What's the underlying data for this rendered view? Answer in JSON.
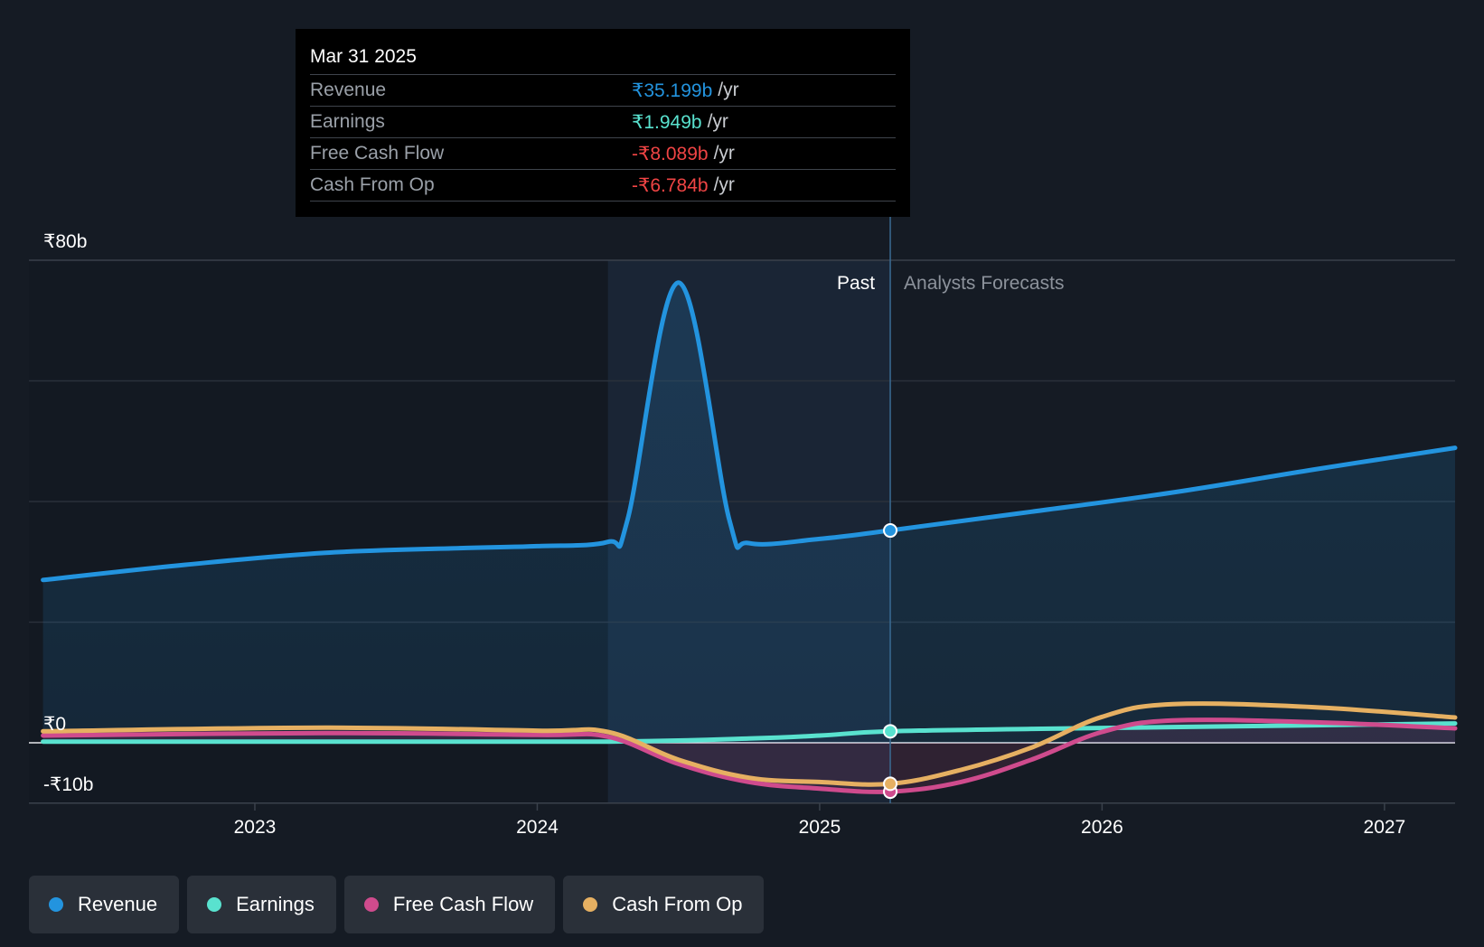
{
  "colors": {
    "background": "#151b24",
    "revenue": "#2394df",
    "earnings": "#59e2cf",
    "fcf": "#cf4b8d",
    "cfo": "#e6b062",
    "negative": "#ef4444"
  },
  "tooltip": {
    "date": "Mar 31 2025",
    "rows": [
      {
        "label": "Revenue",
        "value": "₹35.199b",
        "unit": "/yr"
      },
      {
        "label": "Earnings",
        "value": "₹1.949b",
        "unit": "/yr"
      },
      {
        "label": "Free Cash Flow",
        "value": "-₹8.089b",
        "unit": "/yr"
      },
      {
        "label": "Cash From Op",
        "value": "-₹6.784b",
        "unit": "/yr"
      }
    ]
  },
  "legend": [
    {
      "label": "Revenue",
      "color": "#2394df"
    },
    {
      "label": "Earnings",
      "color": "#59e2cf"
    },
    {
      "label": "Free Cash Flow",
      "color": "#cf4b8d"
    },
    {
      "label": "Cash From Op",
      "color": "#e6b062"
    }
  ],
  "chart_data": {
    "type": "line",
    "title": "",
    "xlabel": "",
    "ylabel": "",
    "x_range": [
      2022.2,
      2027.25
    ],
    "ylim": [
      -10,
      80
    ],
    "y_tick_labels": [
      {
        "value": 80,
        "label": "₹80b"
      },
      {
        "value": 0,
        "label": "₹0"
      },
      {
        "value": -10,
        "label": "-₹10b"
      }
    ],
    "gridlines": [
      80,
      60,
      40,
      20
    ],
    "x_ticks": [
      {
        "value": 2023,
        "label": "2023"
      },
      {
        "value": 2024,
        "label": "2024"
      },
      {
        "value": 2025,
        "label": "2025"
      },
      {
        "value": 2026,
        "label": "2026"
      },
      {
        "value": 2027,
        "label": "2027"
      }
    ],
    "past_region": {
      "start": 2024.25,
      "end": 2025.25,
      "label": "Past"
    },
    "forecast_label": "Analysts Forecasts",
    "marker_x": 2025.25,
    "series": [
      {
        "name": "Revenue",
        "key": "revenue",
        "fill": true,
        "points": [
          [
            2022.25,
            27.0
          ],
          [
            2022.75,
            29.5
          ],
          [
            2023.25,
            31.5
          ],
          [
            2023.75,
            32.3
          ],
          [
            2024.0,
            32.6
          ],
          [
            2024.25,
            33.3
          ],
          [
            2024.32,
            37.0
          ],
          [
            2024.5,
            76.3
          ],
          [
            2024.68,
            37.0
          ],
          [
            2024.75,
            33.1
          ],
          [
            2025.0,
            33.8
          ],
          [
            2025.25,
            35.2
          ],
          [
            2025.75,
            38.3
          ],
          [
            2026.25,
            41.5
          ],
          [
            2026.75,
            45.3
          ],
          [
            2027.25,
            48.9
          ]
        ]
      },
      {
        "name": "Earnings",
        "key": "earnings",
        "points": [
          [
            2022.25,
            0.2
          ],
          [
            2023.25,
            0.2
          ],
          [
            2024.25,
            0.2
          ],
          [
            2024.75,
            0.7
          ],
          [
            2025.0,
            1.2
          ],
          [
            2025.25,
            1.9
          ],
          [
            2025.75,
            2.3
          ],
          [
            2026.25,
            2.6
          ],
          [
            2026.75,
            2.9
          ],
          [
            2027.25,
            3.2
          ]
        ]
      },
      {
        "name": "Free Cash Flow",
        "key": "fcf",
        "points": [
          [
            2022.25,
            1.2
          ],
          [
            2023.25,
            1.6
          ],
          [
            2024.0,
            1.3
          ],
          [
            2024.25,
            1.0
          ],
          [
            2024.5,
            -3.5
          ],
          [
            2024.75,
            -6.5
          ],
          [
            2025.0,
            -7.6
          ],
          [
            2025.25,
            -8.1
          ],
          [
            2025.5,
            -6.5
          ],
          [
            2025.75,
            -2.8
          ],
          [
            2026.0,
            1.8
          ],
          [
            2026.25,
            3.7
          ],
          [
            2026.75,
            3.4
          ],
          [
            2027.25,
            2.4
          ]
        ]
      },
      {
        "name": "Cash From Op",
        "key": "cfo",
        "points": [
          [
            2022.25,
            1.9
          ],
          [
            2023.25,
            2.5
          ],
          [
            2024.0,
            2.0
          ],
          [
            2024.25,
            1.8
          ],
          [
            2024.5,
            -2.8
          ],
          [
            2024.75,
            -5.8
          ],
          [
            2025.0,
            -6.5
          ],
          [
            2025.25,
            -6.8
          ],
          [
            2025.5,
            -4.5
          ],
          [
            2025.75,
            -0.8
          ],
          [
            2026.0,
            4.3
          ],
          [
            2026.25,
            6.4
          ],
          [
            2026.75,
            5.9
          ],
          [
            2027.25,
            4.2
          ]
        ]
      }
    ]
  }
}
